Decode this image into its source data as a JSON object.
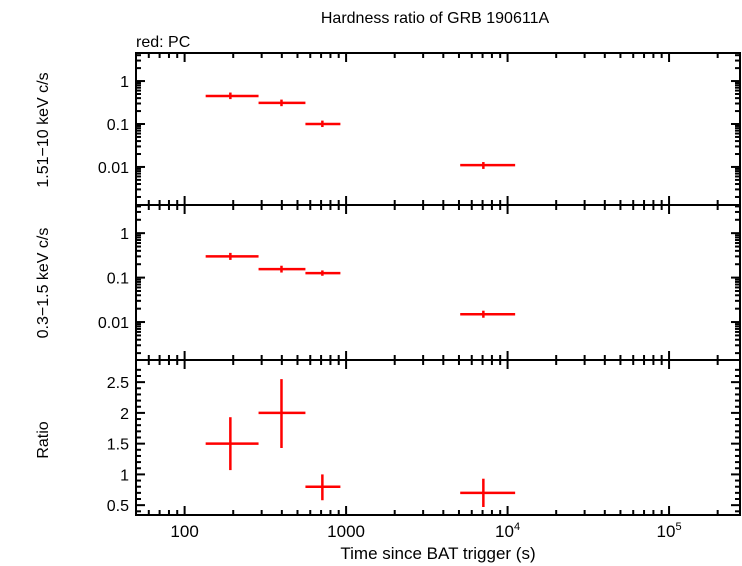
{
  "chart_data": {
    "type": "scatter",
    "title": "Hardness ratio of GRB 190611A",
    "legend_note": "red: PC",
    "xlabel": "Time since BAT trigger (s)",
    "xscale": "log",
    "xlim": [
      50,
      275000
    ],
    "xticks": [
      {
        "v": 100,
        "base": "100",
        "exp": ""
      },
      {
        "v": 1000,
        "base": "1000",
        "exp": ""
      },
      {
        "v": 10000,
        "base": "10",
        "exp": "4"
      },
      {
        "v": 100000,
        "base": "10",
        "exp": "5"
      }
    ],
    "series_color": "#ff0000",
    "panels": [
      {
        "ylabel": "1.51−10 keV c/s",
        "yscale": "log",
        "ylim": [
          0.0013,
          4.5
        ],
        "yticks": [
          {
            "v": 1,
            "label": "1"
          },
          {
            "v": 0.1,
            "label": "0.1"
          },
          {
            "v": 0.01,
            "label": "0.01"
          }
        ],
        "points": [
          {
            "x": 192,
            "xlo": 135,
            "xhi": 287,
            "y": 0.45,
            "ylo": 0.38,
            "yhi": 0.54
          },
          {
            "x": 398,
            "xlo": 287,
            "xhi": 560,
            "y": 0.31,
            "ylo": 0.26,
            "yhi": 0.37
          },
          {
            "x": 713,
            "xlo": 560,
            "xhi": 922,
            "y": 0.1,
            "ylo": 0.085,
            "yhi": 0.12
          },
          {
            "x": 7080,
            "xlo": 5090,
            "xhi": 11140,
            "y": 0.011,
            "ylo": 0.009,
            "yhi": 0.013
          }
        ]
      },
      {
        "ylabel": "0.3−1.5 keV c/s",
        "yscale": "log",
        "ylim": [
          0.0014,
          4.3
        ],
        "yticks": [
          {
            "v": 1,
            "label": "1"
          },
          {
            "v": 0.1,
            "label": "0.1"
          },
          {
            "v": 0.01,
            "label": "0.01"
          }
        ],
        "points": [
          {
            "x": 192,
            "xlo": 135,
            "xhi": 287,
            "y": 0.3,
            "ylo": 0.25,
            "yhi": 0.36
          },
          {
            "x": 398,
            "xlo": 287,
            "xhi": 560,
            "y": 0.155,
            "ylo": 0.13,
            "yhi": 0.185
          },
          {
            "x": 713,
            "xlo": 560,
            "xhi": 922,
            "y": 0.126,
            "ylo": 0.11,
            "yhi": 0.145
          },
          {
            "x": 7080,
            "xlo": 5090,
            "xhi": 11140,
            "y": 0.015,
            "ylo": 0.0125,
            "yhi": 0.018
          }
        ]
      },
      {
        "ylabel": "Ratio",
        "yscale": "linear",
        "ylim": [
          0.34,
          2.86
        ],
        "yticks": [
          {
            "v": 2.5,
            "label": "2.5"
          },
          {
            "v": 2,
            "label": "2"
          },
          {
            "v": 1.5,
            "label": "1.5"
          },
          {
            "v": 1,
            "label": "1"
          },
          {
            "v": 0.5,
            "label": "0.5"
          }
        ],
        "points": [
          {
            "x": 192,
            "xlo": 135,
            "xhi": 287,
            "y": 1.5,
            "ylo": 1.07,
            "yhi": 1.93
          },
          {
            "x": 398,
            "xlo": 287,
            "xhi": 560,
            "y": 2.0,
            "ylo": 1.43,
            "yhi": 2.55
          },
          {
            "x": 713,
            "xlo": 560,
            "xhi": 922,
            "y": 0.8,
            "ylo": 0.58,
            "yhi": 1.0
          },
          {
            "x": 7080,
            "xlo": 5090,
            "xhi": 11140,
            "y": 0.7,
            "ylo": 0.47,
            "yhi": 0.93
          }
        ]
      }
    ]
  }
}
